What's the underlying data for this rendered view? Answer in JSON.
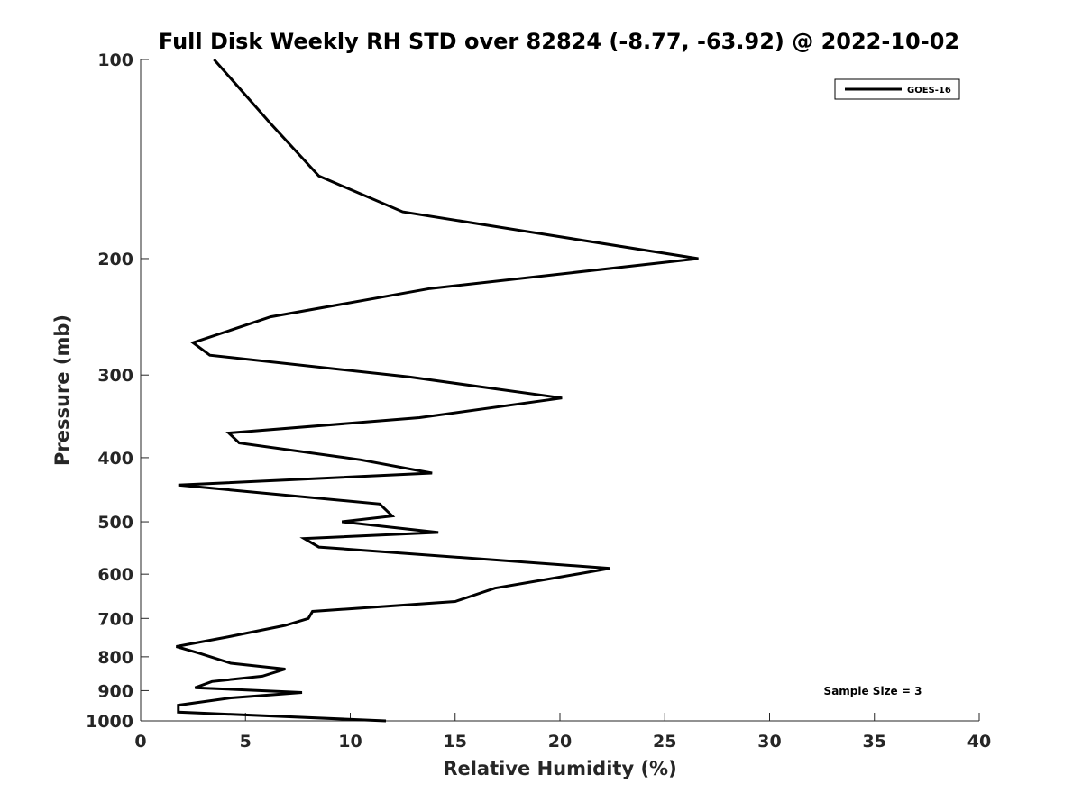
{
  "chart_data": {
    "type": "line",
    "title": "Full Disk Weekly RH STD over 82824 (-8.77, -63.92) @ 2022-10-02",
    "xlabel": "Relative Humidity (%)",
    "ylabel": "Pressure (mb)",
    "xlim": [
      0,
      40
    ],
    "ylim": [
      100,
      1000
    ],
    "y_scale": "log",
    "y_reversed": true,
    "grid": false,
    "x_ticks": [
      0,
      5,
      10,
      15,
      20,
      25,
      30,
      35,
      40
    ],
    "y_ticks": [
      100,
      200,
      300,
      400,
      500,
      600,
      700,
      800,
      900,
      1000
    ],
    "legend_position": "top-right",
    "line_color": "#000000",
    "series": [
      {
        "name": "GOES-16",
        "x": [
          3.5,
          6.2,
          8.5,
          12.5,
          26.6,
          13.8,
          6.2,
          2.5,
          3.3,
          12.8,
          20.1,
          13.3,
          4.2,
          4.7,
          10.5,
          13.9,
          1.8,
          11.4,
          12.0,
          9.6,
          14.2,
          7.8,
          8.5,
          22.4,
          19.5,
          16.9,
          15.0,
          8.2,
          8.0,
          6.9,
          4.2,
          1.7,
          2.8,
          4.3,
          6.9,
          5.8,
          3.4,
          2.6,
          7.7,
          4.3,
          1.8,
          1.8,
          11.7
        ],
        "y": [
          100,
          125,
          150,
          170,
          200,
          222,
          245,
          268,
          280,
          302,
          325,
          348,
          367,
          380,
          403,
          422,
          440,
          470,
          490,
          500,
          519,
          530,
          546,
          588,
          610,
          630,
          660,
          683,
          700,
          717,
          746,
          772,
          790,
          818,
          835,
          856,
          872,
          891,
          906,
          923,
          947,
          970,
          1000
        ]
      }
    ],
    "annotation": "Sample Size = 3"
  }
}
